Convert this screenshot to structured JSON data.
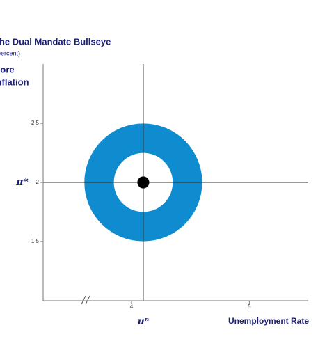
{
  "chart_data": {
    "type": "bullseye",
    "title": "The Dual Mandate Bullseye",
    "subtitle": "(percent)",
    "y_label": [
      "Core",
      "Inflation"
    ],
    "x_label": "Unemployment Rate",
    "x_ref_label": "uⁿ",
    "y_ref_label": "π*",
    "center": {
      "x": 4.1,
      "y": 2
    },
    "rings": [
      {
        "radius": 0.5,
        "color": "#0f8bd0"
      },
      {
        "radius": 0.25,
        "color": "#ffffff"
      },
      {
        "radius": 0.05,
        "color": "#000000"
      }
    ],
    "xlim": [
      3.25,
      5.5
    ],
    "xticks": [
      4,
      5
    ],
    "ylim": [
      1,
      3
    ],
    "yticks": [
      1.5,
      2,
      2.5
    ]
  }
}
